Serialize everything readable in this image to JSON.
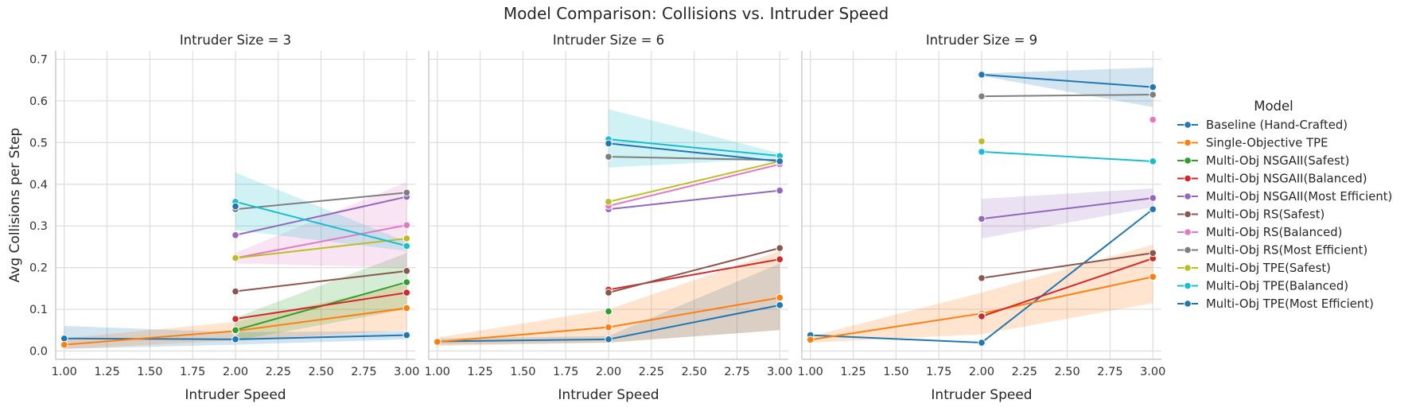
{
  "chart_data": {
    "type": "line",
    "title": "Model Comparison: Collisions vs. Intruder Speed",
    "xlabel": "Intruder Speed",
    "ylabel": "Avg Collisions per Step",
    "xlim": [
      0.95,
      3.05
    ],
    "ylim": [
      -0.02,
      0.72
    ],
    "x_ticks": [
      1.0,
      1.25,
      1.5,
      1.75,
      2.0,
      2.25,
      2.5,
      2.75,
      3.0
    ],
    "x_tick_labels": [
      "1.00",
      "1.25",
      "1.50",
      "1.75",
      "2.00",
      "2.25",
      "2.50",
      "2.75",
      "3.00"
    ],
    "y_ticks": [
      0.0,
      0.1,
      0.2,
      0.3,
      0.4,
      0.5,
      0.6,
      0.7
    ],
    "y_tick_labels": [
      "0.0",
      "0.1",
      "0.2",
      "0.3",
      "0.4",
      "0.5",
      "0.6",
      "0.7"
    ],
    "grid": true,
    "legend": {
      "title": "Model",
      "placement": "right",
      "entries": [
        {
          "label": "Baseline (Hand-Crafted)",
          "color": "#1f77b4"
        },
        {
          "label": "Single-Objective TPE",
          "color": "#ff7f0e"
        },
        {
          "label": "Multi-Obj NSGAII(Safest)",
          "color": "#2ca02c"
        },
        {
          "label": "Multi-Obj NSGAII(Balanced)",
          "color": "#d62728"
        },
        {
          "label": "Multi-Obj NSGAII(Most Efficient)",
          "color": "#9467bd"
        },
        {
          "label": "Multi-Obj RS(Safest)",
          "color": "#8c564b"
        },
        {
          "label": "Multi-Obj RS(Balanced)",
          "color": "#e377c2"
        },
        {
          "label": "Multi-Obj RS(Most Efficient)",
          "color": "#7f7f7f"
        },
        {
          "label": "Multi-Obj TPE(Safest)",
          "color": "#bcbd22"
        },
        {
          "label": "Multi-Obj TPE(Balanced)",
          "color": "#17becf"
        },
        {
          "label": "Multi-Obj TPE(Most Efficient)",
          "color": "#1f77b4"
        }
      ]
    },
    "facets": [
      {
        "title": "Intruder Size = 3",
        "series": [
          {
            "name": "Baseline (Hand-Crafted)",
            "color": "#1f77b4",
            "points": [
              [
                1,
                0.03
              ],
              [
                2,
                0.028
              ],
              [
                3,
                0.038
              ]
            ],
            "band": [
              [
                1,
                0.005,
                0.06
              ],
              [
                2,
                0.015,
                0.045
              ],
              [
                3,
                0.028,
                0.048
              ]
            ]
          },
          {
            "name": "Single-Objective TPE",
            "color": "#ff7f0e",
            "points": [
              [
                1,
                0.015
              ],
              [
                2,
                0.048
              ],
              [
                3,
                0.103
              ]
            ],
            "band": [
              [
                1,
                0.005,
                0.03
              ],
              [
                2,
                0.025,
                0.07
              ],
              [
                3,
                0.05,
                0.16
              ]
            ]
          },
          {
            "name": "Multi-Obj NSGAII(Safest)",
            "color": "#2ca02c",
            "points": [
              [
                2,
                0.05
              ],
              [
                3,
                0.165
              ]
            ],
            "band": [
              [
                2,
                0.025,
                0.08
              ],
              [
                3,
                0.1,
                0.235
              ]
            ]
          },
          {
            "name": "Multi-Obj NSGAII(Balanced)",
            "color": "#d62728",
            "points": [
              [
                2,
                0.077
              ],
              [
                3,
                0.14
              ]
            ],
            "band": null
          },
          {
            "name": "Multi-Obj NSGAII(Most Efficient)",
            "color": "#9467bd",
            "points": [
              [
                2,
                0.278
              ],
              [
                3,
                0.37
              ]
            ],
            "band": null
          },
          {
            "name": "Multi-Obj RS(Safest)",
            "color": "#8c564b",
            "points": [
              [
                2,
                0.143
              ],
              [
                3,
                0.192
              ]
            ],
            "band": null
          },
          {
            "name": "Multi-Obj RS(Balanced)",
            "color": "#e377c2",
            "points": [
              [
                2,
                0.223
              ],
              [
                3,
                0.302
              ]
            ],
            "band": [
              [
                2,
                0.21,
                0.235
              ],
              [
                3,
                0.2,
                0.405
              ]
            ]
          },
          {
            "name": "Multi-Obj RS(Most Efficient)",
            "color": "#7f7f7f",
            "points": [
              [
                2,
                0.34
              ],
              [
                3,
                0.38
              ]
            ],
            "band": null
          },
          {
            "name": "Multi-Obj TPE(Safest)",
            "color": "#bcbd22",
            "points": [
              [
                2,
                0.223
              ],
              [
                3,
                0.27
              ]
            ],
            "band": null
          },
          {
            "name": "Multi-Obj TPE(Balanced)",
            "color": "#17becf",
            "points": [
              [
                2,
                0.358
              ],
              [
                3,
                0.252
              ]
            ],
            "band": [
              [
                2,
                0.29,
                0.428
              ],
              [
                3,
                0.24,
                0.262
              ]
            ]
          },
          {
            "name": "Multi-Obj TPE(Most Efficient)",
            "color": "#1f77b4",
            "points": [
              [
                2,
                0.347
              ]
            ],
            "band": null
          }
        ]
      },
      {
        "title": "Intruder Size = 6",
        "series": [
          {
            "name": "Baseline (Hand-Crafted)",
            "color": "#1f77b4",
            "points": [
              [
                1,
                0.023
              ],
              [
                2,
                0.028
              ],
              [
                3,
                0.11
              ]
            ],
            "band": [
              [
                1,
                0.015,
                0.03
              ],
              [
                2,
                0.02,
                0.036
              ],
              [
                3,
                0.05,
                0.21
              ]
            ]
          },
          {
            "name": "Single-Objective TPE",
            "color": "#ff7f0e",
            "points": [
              [
                1,
                0.022
              ],
              [
                2,
                0.057
              ],
              [
                3,
                0.128
              ]
            ],
            "band": [
              [
                1,
                0.012,
                0.032
              ],
              [
                2,
                0.02,
                0.1
              ],
              [
                3,
                0.05,
                0.24
              ]
            ]
          },
          {
            "name": "Multi-Obj NSGAII(Safest)",
            "color": "#2ca02c",
            "points": [
              [
                2,
                0.095
              ]
            ],
            "band": null
          },
          {
            "name": "Multi-Obj NSGAII(Balanced)",
            "color": "#d62728",
            "points": [
              [
                2,
                0.147
              ],
              [
                3,
                0.22
              ]
            ],
            "band": null
          },
          {
            "name": "Multi-Obj NSGAII(Most Efficient)",
            "color": "#9467bd",
            "points": [
              [
                2,
                0.34
              ],
              [
                3,
                0.385
              ]
            ],
            "band": null
          },
          {
            "name": "Multi-Obj RS(Safest)",
            "color": "#8c564b",
            "points": [
              [
                2,
                0.14
              ],
              [
                3,
                0.247
              ]
            ],
            "band": null
          },
          {
            "name": "Multi-Obj RS(Balanced)",
            "color": "#e377c2",
            "points": [
              [
                2,
                0.348
              ],
              [
                3,
                0.448
              ]
            ],
            "band": null
          },
          {
            "name": "Multi-Obj RS(Most Efficient)",
            "color": "#7f7f7f",
            "points": [
              [
                2,
                0.466
              ],
              [
                3,
                0.458
              ]
            ],
            "band": null
          },
          {
            "name": "Multi-Obj TPE(Safest)",
            "color": "#bcbd22",
            "points": [
              [
                2,
                0.358
              ],
              [
                3,
                0.455
              ]
            ],
            "band": null
          },
          {
            "name": "Multi-Obj TPE(Balanced)",
            "color": "#17becf",
            "points": [
              [
                2,
                0.508
              ],
              [
                3,
                0.468
              ]
            ],
            "band": [
              [
                2,
                0.44,
                0.58
              ],
              [
                3,
                0.462,
                0.474
              ]
            ]
          },
          {
            "name": "Multi-Obj TPE(Most Efficient)",
            "color": "#1f77b4",
            "points": [
              [
                2,
                0.498
              ],
              [
                3,
                0.455
              ]
            ],
            "band": null
          }
        ]
      },
      {
        "title": "Intruder Size = 9",
        "series": [
          {
            "name": "Baseline (Hand-Crafted)",
            "color": "#1f77b4",
            "points": [
              [
                1,
                0.038
              ],
              [
                2,
                0.02
              ],
              [
                3,
                0.34
              ]
            ],
            "band": null
          },
          {
            "name": "Single-Objective TPE",
            "color": "#ff7f0e",
            "points": [
              [
                1,
                0.027
              ],
              [
                2,
                0.09
              ],
              [
                3,
                0.178
              ]
            ],
            "band": [
              [
                1,
                0.02,
                0.035
              ],
              [
                2,
                0.04,
                0.14
              ],
              [
                3,
                0.115,
                0.255
              ]
            ]
          },
          {
            "name": "Multi-Obj NSGAII(Safest)",
            "color": "#2ca02c",
            "points": [
              [
                2,
                0.085
              ]
            ],
            "band": null
          },
          {
            "name": "Multi-Obj NSGAII(Balanced)",
            "color": "#d62728",
            "points": [
              [
                2,
                0.083
              ],
              [
                3,
                0.222
              ]
            ],
            "band": null
          },
          {
            "name": "Multi-Obj NSGAII(Most Efficient)",
            "color": "#9467bd",
            "points": [
              [
                2,
                0.317
              ],
              [
                3,
                0.367
              ]
            ],
            "band": [
              [
                2,
                0.27,
                0.365
              ],
              [
                3,
                0.345,
                0.39
              ]
            ]
          },
          {
            "name": "Multi-Obj RS(Safest)",
            "color": "#8c564b",
            "points": [
              [
                2,
                0.175
              ],
              [
                3,
                0.235
              ]
            ],
            "band": null
          },
          {
            "name": "Multi-Obj RS(Balanced)",
            "color": "#e377c2",
            "points": [
              [
                3,
                0.555
              ]
            ],
            "band": null
          },
          {
            "name": "Multi-Obj RS(Most Efficient)",
            "color": "#7f7f7f",
            "points": [
              [
                2,
                0.611
              ],
              [
                3,
                0.615
              ]
            ],
            "band": null
          },
          {
            "name": "Multi-Obj TPE(Safest)",
            "color": "#bcbd22",
            "points": [
              [
                2,
                0.503
              ]
            ],
            "band": null
          },
          {
            "name": "Multi-Obj TPE(Balanced)",
            "color": "#17becf",
            "points": [
              [
                2,
                0.478
              ],
              [
                3,
                0.455
              ]
            ],
            "band": null
          },
          {
            "name": "Multi-Obj TPE(Most Efficient)",
            "color": "#1f77b4",
            "points": [
              [
                2,
                0.663
              ],
              [
                3,
                0.633
              ]
            ],
            "band": [
              [
                2,
                0.66,
                0.666
              ],
              [
                3,
                0.585,
                0.68
              ]
            ]
          }
        ]
      }
    ]
  }
}
